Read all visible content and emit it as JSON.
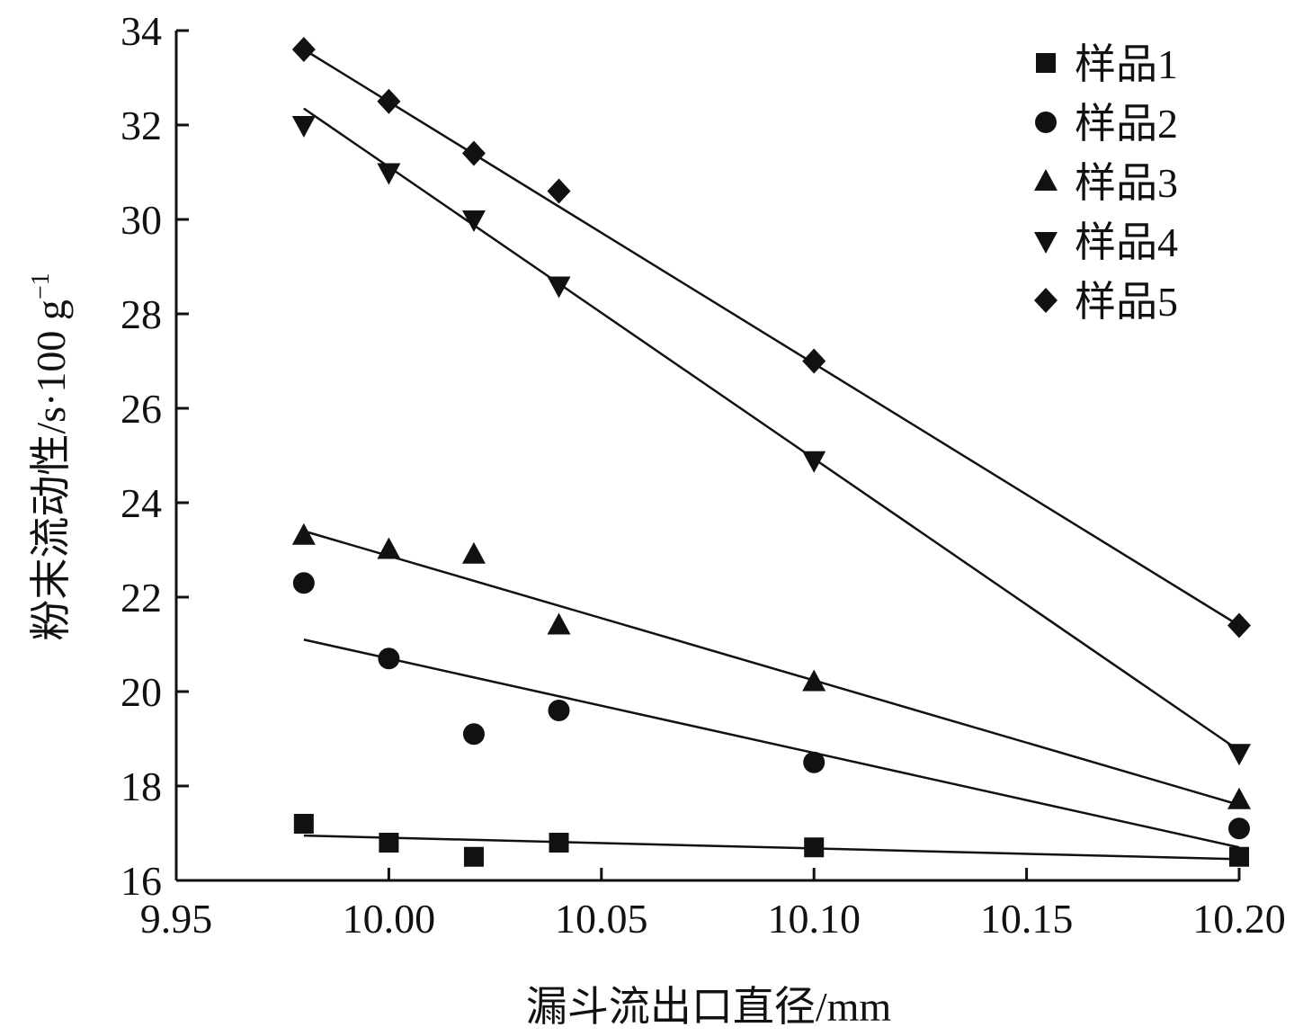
{
  "chart_data": {
    "type": "scatter",
    "xlabel": "漏斗流出口直径/mm",
    "ylabel_main": "粉末流动性/s·100 g",
    "ylabel_sup": "−1",
    "xlim": [
      9.95,
      10.2
    ],
    "ylim": [
      16,
      34
    ],
    "xticks": [
      9.95,
      10.0,
      10.05,
      10.1,
      10.15,
      10.2
    ],
    "xtick_labels": [
      "9.95",
      "10.00",
      "10.05",
      "10.10",
      "10.15",
      "10.20"
    ],
    "yticks": [
      16,
      18,
      20,
      22,
      24,
      26,
      28,
      30,
      32,
      34
    ],
    "ytick_labels": [
      "16",
      "18",
      "20",
      "22",
      "24",
      "26",
      "28",
      "30",
      "32",
      "34"
    ],
    "grid": false,
    "legend_position": "top-right",
    "series": [
      {
        "name": "样品1",
        "marker": "square",
        "x": [
          9.98,
          10.0,
          10.02,
          10.04,
          10.1,
          10.2
        ],
        "y": [
          17.2,
          16.8,
          16.5,
          16.8,
          16.7,
          16.5
        ],
        "fit": [
          [
            9.98,
            16.95
          ],
          [
            10.2,
            16.45
          ]
        ]
      },
      {
        "name": "样品2",
        "marker": "circle",
        "x": [
          9.98,
          10.0,
          10.02,
          10.04,
          10.1,
          10.2
        ],
        "y": [
          22.3,
          20.7,
          19.1,
          19.6,
          18.5,
          17.1
        ],
        "fit": [
          [
            9.98,
            21.1
          ],
          [
            10.2,
            16.7
          ]
        ]
      },
      {
        "name": "样品3",
        "marker": "triangle-up",
        "x": [
          9.98,
          10.0,
          10.02,
          10.04,
          10.1,
          10.2
        ],
        "y": [
          23.3,
          23.0,
          22.9,
          21.4,
          20.2,
          17.7
        ],
        "fit": [
          [
            9.98,
            23.4
          ],
          [
            10.2,
            17.6
          ]
        ]
      },
      {
        "name": "样品4",
        "marker": "triangle-down",
        "x": [
          9.98,
          10.0,
          10.02,
          10.04,
          10.1,
          10.2
        ],
        "y": [
          32.0,
          31.0,
          30.0,
          28.6,
          24.9,
          18.7
        ],
        "fit": [
          [
            9.98,
            32.35
          ],
          [
            10.2,
            18.75
          ]
        ]
      },
      {
        "name": "样品5",
        "marker": "diamond",
        "x": [
          9.98,
          10.0,
          10.02,
          10.04,
          10.1,
          10.2
        ],
        "y": [
          33.6,
          32.5,
          31.4,
          30.6,
          27.0,
          21.4
        ],
        "fit": [
          [
            9.98,
            33.6
          ],
          [
            10.2,
            21.4
          ]
        ]
      }
    ]
  }
}
